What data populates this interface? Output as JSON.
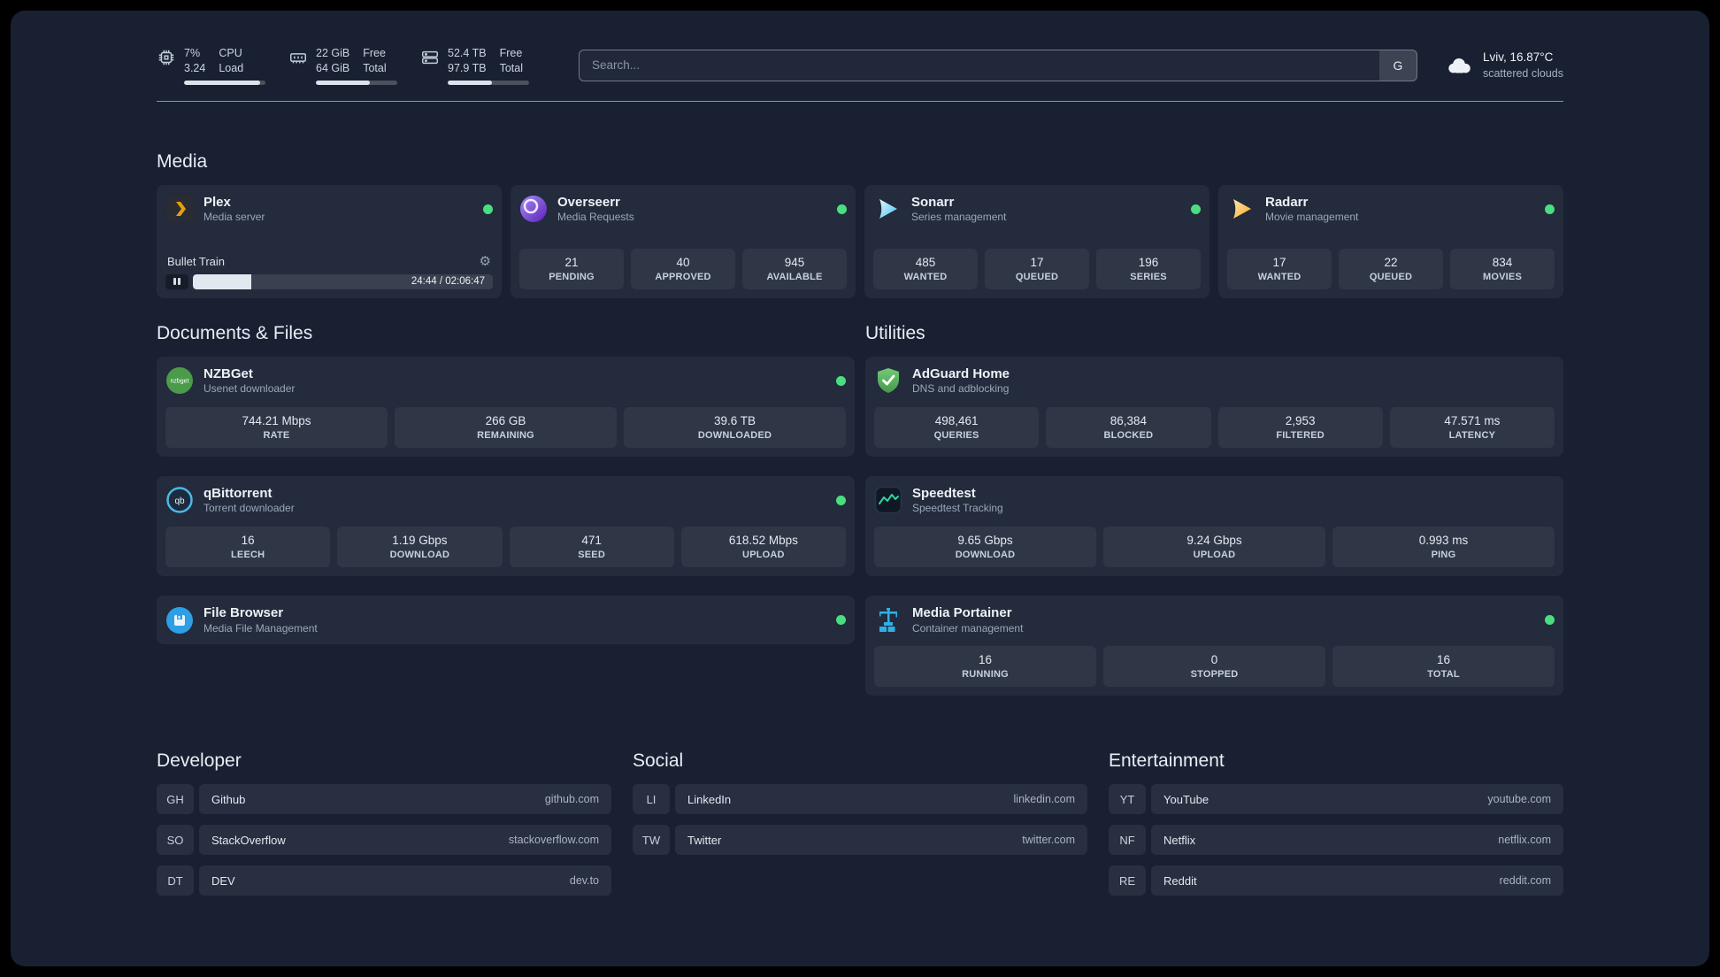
{
  "topbar": {
    "resources": [
      {
        "name": "cpu",
        "value_top": "7%",
        "value_bottom": "3.24",
        "label_top": "CPU",
        "label_bottom": "Load",
        "bar_percent": 93
      },
      {
        "name": "memory",
        "value_top": "22 GiB",
        "value_bottom": "64 GiB",
        "label_top": "Free",
        "label_bottom": "Total",
        "bar_percent": 66
      },
      {
        "name": "disk",
        "value_top": "52.4 TB",
        "value_bottom": "97.9 TB",
        "label_top": "Free",
        "label_bottom": "Total",
        "bar_percent": 54
      }
    ],
    "search": {
      "placeholder": "Search...",
      "provider_label": "G"
    },
    "weather": {
      "location": "Lviv, 16.87°C",
      "condition": "scattered clouds"
    }
  },
  "icons": {
    "gear": "⚙",
    "nzbget_text": "nzbget",
    "qbittorrent_text": "qb"
  },
  "colors": {
    "status_online": "#4ade80",
    "background": "#182032",
    "accent_amber": "#e5a00d"
  },
  "sections": {
    "media": {
      "title": "Media",
      "cards": [
        {
          "name": "Plex",
          "description": "Media server",
          "online": true,
          "player": {
            "now_playing": "Bullet Train",
            "time": "24:44 / 02:06:47",
            "progress_percent": 19.6
          }
        },
        {
          "name": "Overseerr",
          "description": "Media Requests",
          "online": true,
          "stats": [
            {
              "value": "21",
              "label": "PENDING"
            },
            {
              "value": "40",
              "label": "APPROVED"
            },
            {
              "value": "945",
              "label": "AVAILABLE"
            }
          ]
        },
        {
          "name": "Sonarr",
          "description": "Series management",
          "online": true,
          "stats": [
            {
              "value": "485",
              "label": "WANTED"
            },
            {
              "value": "17",
              "label": "QUEUED"
            },
            {
              "value": "196",
              "label": "SERIES"
            }
          ]
        },
        {
          "name": "Radarr",
          "description": "Movie management",
          "online": true,
          "stats": [
            {
              "value": "17",
              "label": "WANTED"
            },
            {
              "value": "22",
              "label": "QUEUED"
            },
            {
              "value": "834",
              "label": "MOVIES"
            }
          ]
        }
      ]
    },
    "documents": {
      "title": "Documents & Files",
      "cards": [
        {
          "name": "NZBGet",
          "description": "Usenet downloader",
          "online": true,
          "stats": [
            {
              "value": "744.21 Mbps",
              "label": "RATE"
            },
            {
              "value": "266 GB",
              "label": "REMAINING"
            },
            {
              "value": "39.6 TB",
              "label": "DOWNLOADED"
            }
          ]
        },
        {
          "name": "qBittorrent",
          "description": "Torrent downloader",
          "online": true,
          "stats": [
            {
              "value": "16",
              "label": "LEECH"
            },
            {
              "value": "1.19 Gbps",
              "label": "DOWNLOAD"
            },
            {
              "value": "471",
              "label": "SEED"
            },
            {
              "value": "618.52 Mbps",
              "label": "UPLOAD"
            }
          ]
        },
        {
          "name": "File Browser",
          "description": "Media File Management",
          "online": true,
          "stats": []
        }
      ]
    },
    "utilities": {
      "title": "Utilities",
      "cards": [
        {
          "name": "AdGuard Home",
          "description": "DNS and adblocking",
          "stats": [
            {
              "value": "498,461",
              "label": "QUERIES"
            },
            {
              "value": "86,384",
              "label": "BLOCKED"
            },
            {
              "value": "2,953",
              "label": "FILTERED"
            },
            {
              "value": "47.571 ms",
              "label": "LATENCY"
            }
          ]
        },
        {
          "name": "Speedtest",
          "description": "Speedtest Tracking",
          "stats": [
            {
              "value": "9.65 Gbps",
              "label": "DOWNLOAD"
            },
            {
              "value": "9.24 Gbps",
              "label": "UPLOAD"
            },
            {
              "value": "0.993 ms",
              "label": "PING"
            }
          ]
        },
        {
          "name": "Media Portainer",
          "description": "Container management",
          "online": true,
          "stats": [
            {
              "value": "16",
              "label": "RUNNING"
            },
            {
              "value": "0",
              "label": "STOPPED"
            },
            {
              "value": "16",
              "label": "TOTAL"
            }
          ]
        }
      ]
    }
  },
  "bookmarks": [
    {
      "title": "Developer",
      "items": [
        {
          "abbr": "GH",
          "name": "Github",
          "url": "github.com"
        },
        {
          "abbr": "SO",
          "name": "StackOverflow",
          "url": "stackoverflow.com"
        },
        {
          "abbr": "DT",
          "name": "DEV",
          "url": "dev.to"
        }
      ]
    },
    {
      "title": "Social",
      "items": [
        {
          "abbr": "LI",
          "name": "LinkedIn",
          "url": "linkedin.com"
        },
        {
          "abbr": "TW",
          "name": "Twitter",
          "url": "twitter.com"
        }
      ]
    },
    {
      "title": "Entertainment",
      "items": [
        {
          "abbr": "YT",
          "name": "YouTube",
          "url": "youtube.com"
        },
        {
          "abbr": "NF",
          "name": "Netflix",
          "url": "netflix.com"
        },
        {
          "abbr": "RE",
          "name": "Reddit",
          "url": "reddit.com"
        }
      ]
    }
  ]
}
